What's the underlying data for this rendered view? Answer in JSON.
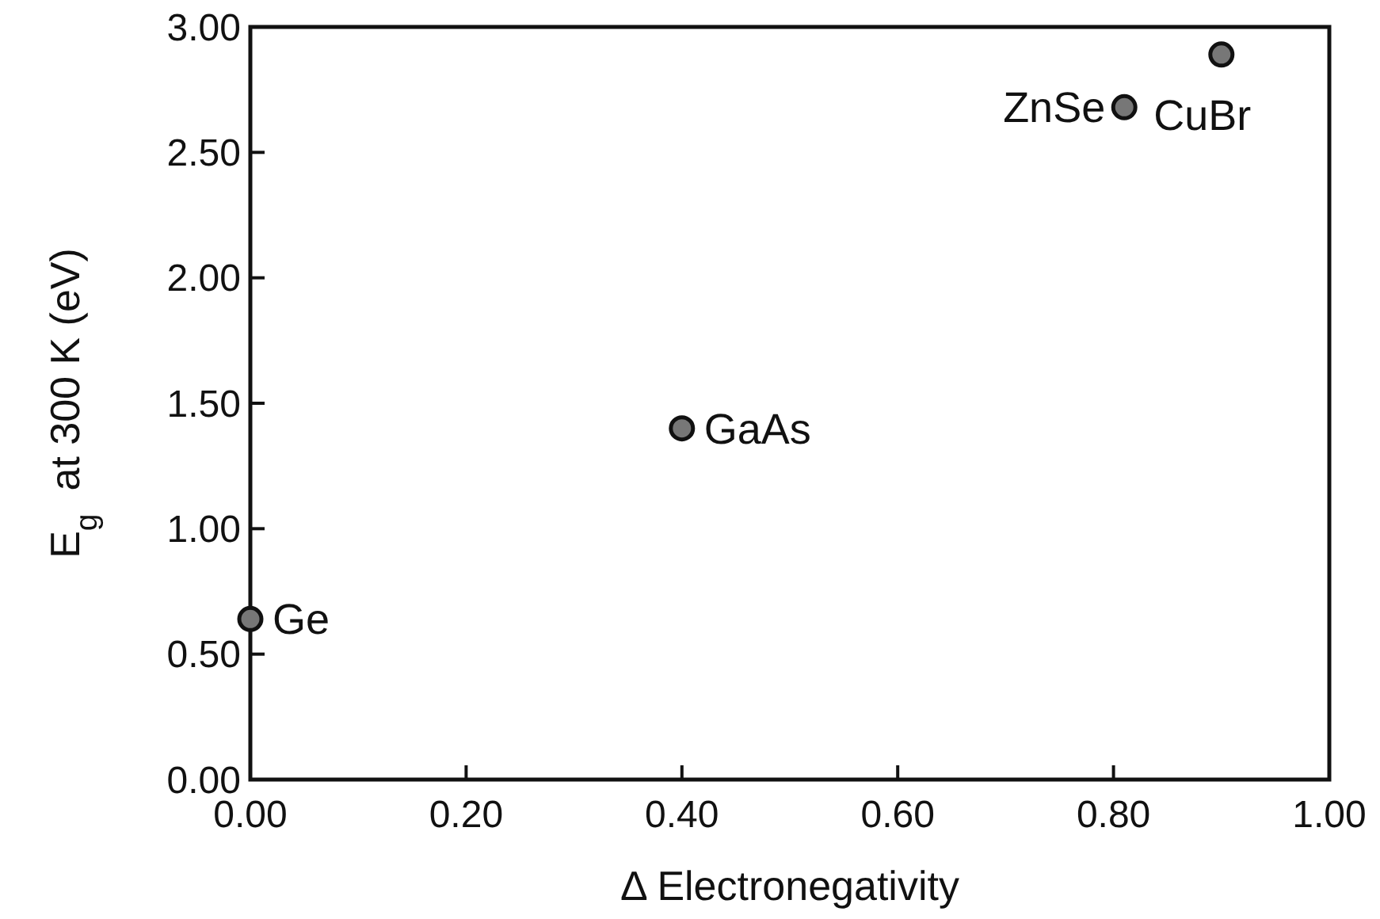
{
  "chart_data": {
    "type": "scatter",
    "xlabel": "Δ Electronegativity",
    "ylabel": "E$_{g}$  at 300 K (eV)",
    "x": [
      0.0,
      0.4,
      0.81,
      0.9
    ],
    "values": [
      0.64,
      1.4,
      2.68,
      2.89
    ],
    "annotations": [
      {
        "text": "Ge",
        "x": 0.0,
        "y": 0.64
      },
      {
        "text": "GaAs",
        "x": 0.4,
        "y": 1.4
      },
      {
        "text": "ZnSe",
        "x": 0.81,
        "y": 2.68
      },
      {
        "text": "CuBr",
        "x": 0.9,
        "y": 2.89
      }
    ],
    "color": "#777777",
    "marker": "circle",
    "xlim": [
      0,
      1
    ],
    "ylim": [
      0,
      3
    ],
    "xticks": [
      {
        "value": 0,
        "label": "0.00"
      },
      {
        "value": 0.2,
        "label": "0.20"
      },
      {
        "value": 0.4,
        "label": "0.40"
      },
      {
        "value": 0.6,
        "label": "0.60"
      },
      {
        "value": 0.8,
        "label": "0.80"
      },
      {
        "value": 1,
        "label": "1.00"
      }
    ],
    "yticks": [
      {
        "value": 0,
        "label": "0.00"
      },
      {
        "value": 0.5,
        "label": "0.50"
      },
      {
        "value": 1,
        "label": "1.00"
      },
      {
        "value": 1.5,
        "label": "1.50"
      },
      {
        "value": 2,
        "label": "2.00"
      },
      {
        "value": 2.5,
        "label": "2.50"
      },
      {
        "value": 3,
        "label": "3.00"
      }
    ],
    "grid": false
  }
}
